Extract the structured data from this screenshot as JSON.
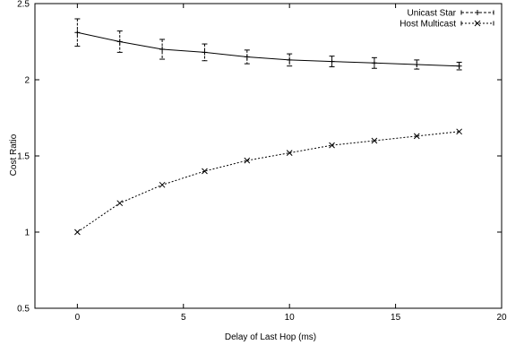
{
  "chart_data": {
    "type": "line",
    "xlabel": "Delay of Last Hop (ms)",
    "ylabel": "Cost Ratio",
    "xlim": [
      -2,
      20
    ],
    "ylim": [
      0.5,
      2.5
    ],
    "xticks": [
      0,
      5,
      10,
      15,
      20
    ],
    "yticks": [
      0.5,
      1,
      1.5,
      2,
      2.5
    ],
    "xtick_labels": [
      "0",
      "5",
      "10",
      "15",
      "20"
    ],
    "ytick_labels": [
      "0.5",
      "1",
      "1.5",
      "2",
      "2.5"
    ],
    "grid": false,
    "legend_position": "top-right",
    "series": [
      {
        "name": "Unicast Star",
        "line_style": "solid",
        "marker": "plus",
        "color": "#000000",
        "x": [
          0,
          2,
          4,
          6,
          8,
          10,
          12,
          14,
          16,
          18
        ],
        "y": [
          2.31,
          2.25,
          2.2,
          2.18,
          2.15,
          2.13,
          2.12,
          2.11,
          2.1,
          2.09
        ],
        "err": [
          0.09,
          0.07,
          0.065,
          0.055,
          0.045,
          0.04,
          0.035,
          0.035,
          0.03,
          0.025
        ]
      },
      {
        "name": "Host Multicast",
        "line_style": "dotted",
        "marker": "cross",
        "color": "#000000",
        "x": [
          0,
          2,
          4,
          6,
          8,
          10,
          12,
          14,
          16,
          18
        ],
        "y": [
          1.0,
          1.19,
          1.31,
          1.4,
          1.47,
          1.52,
          1.57,
          1.6,
          1.63,
          1.66
        ],
        "err": [
          0.005,
          0.005,
          0.005,
          0.005,
          0.005,
          0.005,
          0.005,
          0.005,
          0.005,
          0.005
        ]
      }
    ]
  }
}
